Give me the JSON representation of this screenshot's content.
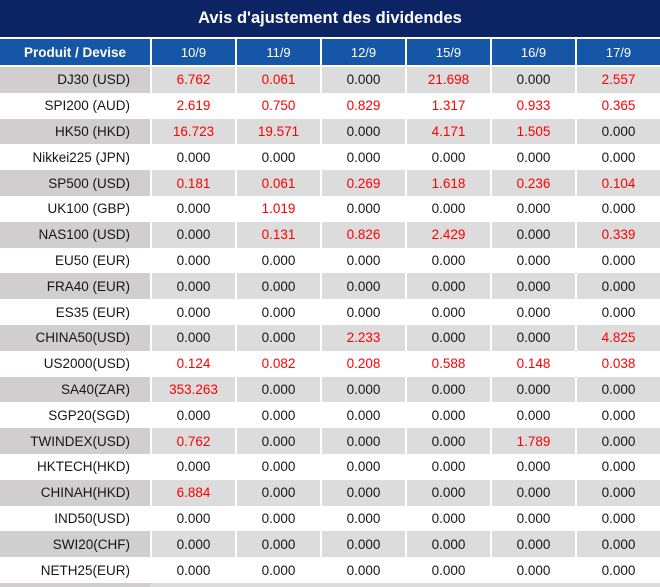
{
  "title": "Avis d'ajustement des dividendes",
  "table": {
    "header": {
      "product_label": "Produit / Devise",
      "dates": [
        "10/9",
        "11/9",
        "12/9",
        "15/9",
        "16/9",
        "17/9"
      ]
    },
    "rows": [
      {
        "product": "DJ30 (USD)",
        "values": [
          "6.762",
          "0.061",
          "0.000",
          "21.698",
          "0.000",
          "2.557"
        ]
      },
      {
        "product": "SPI200 (AUD)",
        "values": [
          "2.619",
          "0.750",
          "0.829",
          "1.317",
          "0.933",
          "0.365"
        ]
      },
      {
        "product": "HK50 (HKD)",
        "values": [
          "16.723",
          "19.571",
          "0.000",
          "4.171",
          "1.505",
          "0.000"
        ]
      },
      {
        "product": "Nikkei225 (JPN)",
        "values": [
          "0.000",
          "0.000",
          "0.000",
          "0.000",
          "0.000",
          "0.000"
        ]
      },
      {
        "product": "SP500 (USD)",
        "values": [
          "0.181",
          "0.061",
          "0.269",
          "1.618",
          "0.236",
          "0.104"
        ]
      },
      {
        "product": "UK100 (GBP)",
        "values": [
          "0.000",
          "1.019",
          "0.000",
          "0.000",
          "0.000",
          "0.000"
        ]
      },
      {
        "product": "NAS100 (USD)",
        "values": [
          "0.000",
          "0.131",
          "0.826",
          "2.429",
          "0.000",
          "0.339"
        ]
      },
      {
        "product": "EU50 (EUR)",
        "values": [
          "0.000",
          "0.000",
          "0.000",
          "0.000",
          "0.000",
          "0.000"
        ]
      },
      {
        "product": "FRA40 (EUR)",
        "values": [
          "0.000",
          "0.000",
          "0.000",
          "0.000",
          "0.000",
          "0.000"
        ]
      },
      {
        "product": "ES35 (EUR)",
        "values": [
          "0.000",
          "0.000",
          "0.000",
          "0.000",
          "0.000",
          "0.000"
        ]
      },
      {
        "product": "CHINA50(USD)",
        "values": [
          "0.000",
          "0.000",
          "2.233",
          "0.000",
          "0.000",
          "4.825"
        ]
      },
      {
        "product": "US2000(USD)",
        "values": [
          "0.124",
          "0.082",
          "0.208",
          "0.588",
          "0.148",
          "0.038"
        ]
      },
      {
        "product": "SA40(ZAR)",
        "values": [
          "353.263",
          "0.000",
          "0.000",
          "0.000",
          "0.000",
          "0.000"
        ]
      },
      {
        "product": "SGP20(SGD)",
        "values": [
          "0.000",
          "0.000",
          "0.000",
          "0.000",
          "0.000",
          "0.000"
        ]
      },
      {
        "product": "TWINDEX(USD)",
        "values": [
          "0.762",
          "0.000",
          "0.000",
          "0.000",
          "1.789",
          "0.000"
        ]
      },
      {
        "product": "HKTECH(HKD)",
        "values": [
          "0.000",
          "0.000",
          "0.000",
          "0.000",
          "0.000",
          "0.000"
        ]
      },
      {
        "product": "CHINAH(HKD)",
        "values": [
          "6.884",
          "0.000",
          "0.000",
          "0.000",
          "0.000",
          "0.000"
        ]
      },
      {
        "product": "IND50(USD)",
        "values": [
          "0.000",
          "0.000",
          "0.000",
          "0.000",
          "0.000",
          "0.000"
        ]
      },
      {
        "product": "SWI20(CHF)",
        "values": [
          "0.000",
          "0.000",
          "0.000",
          "0.000",
          "0.000",
          "0.000"
        ]
      },
      {
        "product": "NETH25(EUR)",
        "values": [
          "0.000",
          "0.000",
          "0.000",
          "0.000",
          "0.000",
          "0.000"
        ]
      }
    ]
  },
  "colors": {
    "title_bg": "#0d2464",
    "header_bg": "#1656a6",
    "header_text": "#ffffff",
    "row_alt_bg": "#dcdcdc",
    "row_alt_first_col_bg": "#d0cece",
    "zero_value_text": "#161616",
    "nonzero_value_text": "#fe0000"
  }
}
